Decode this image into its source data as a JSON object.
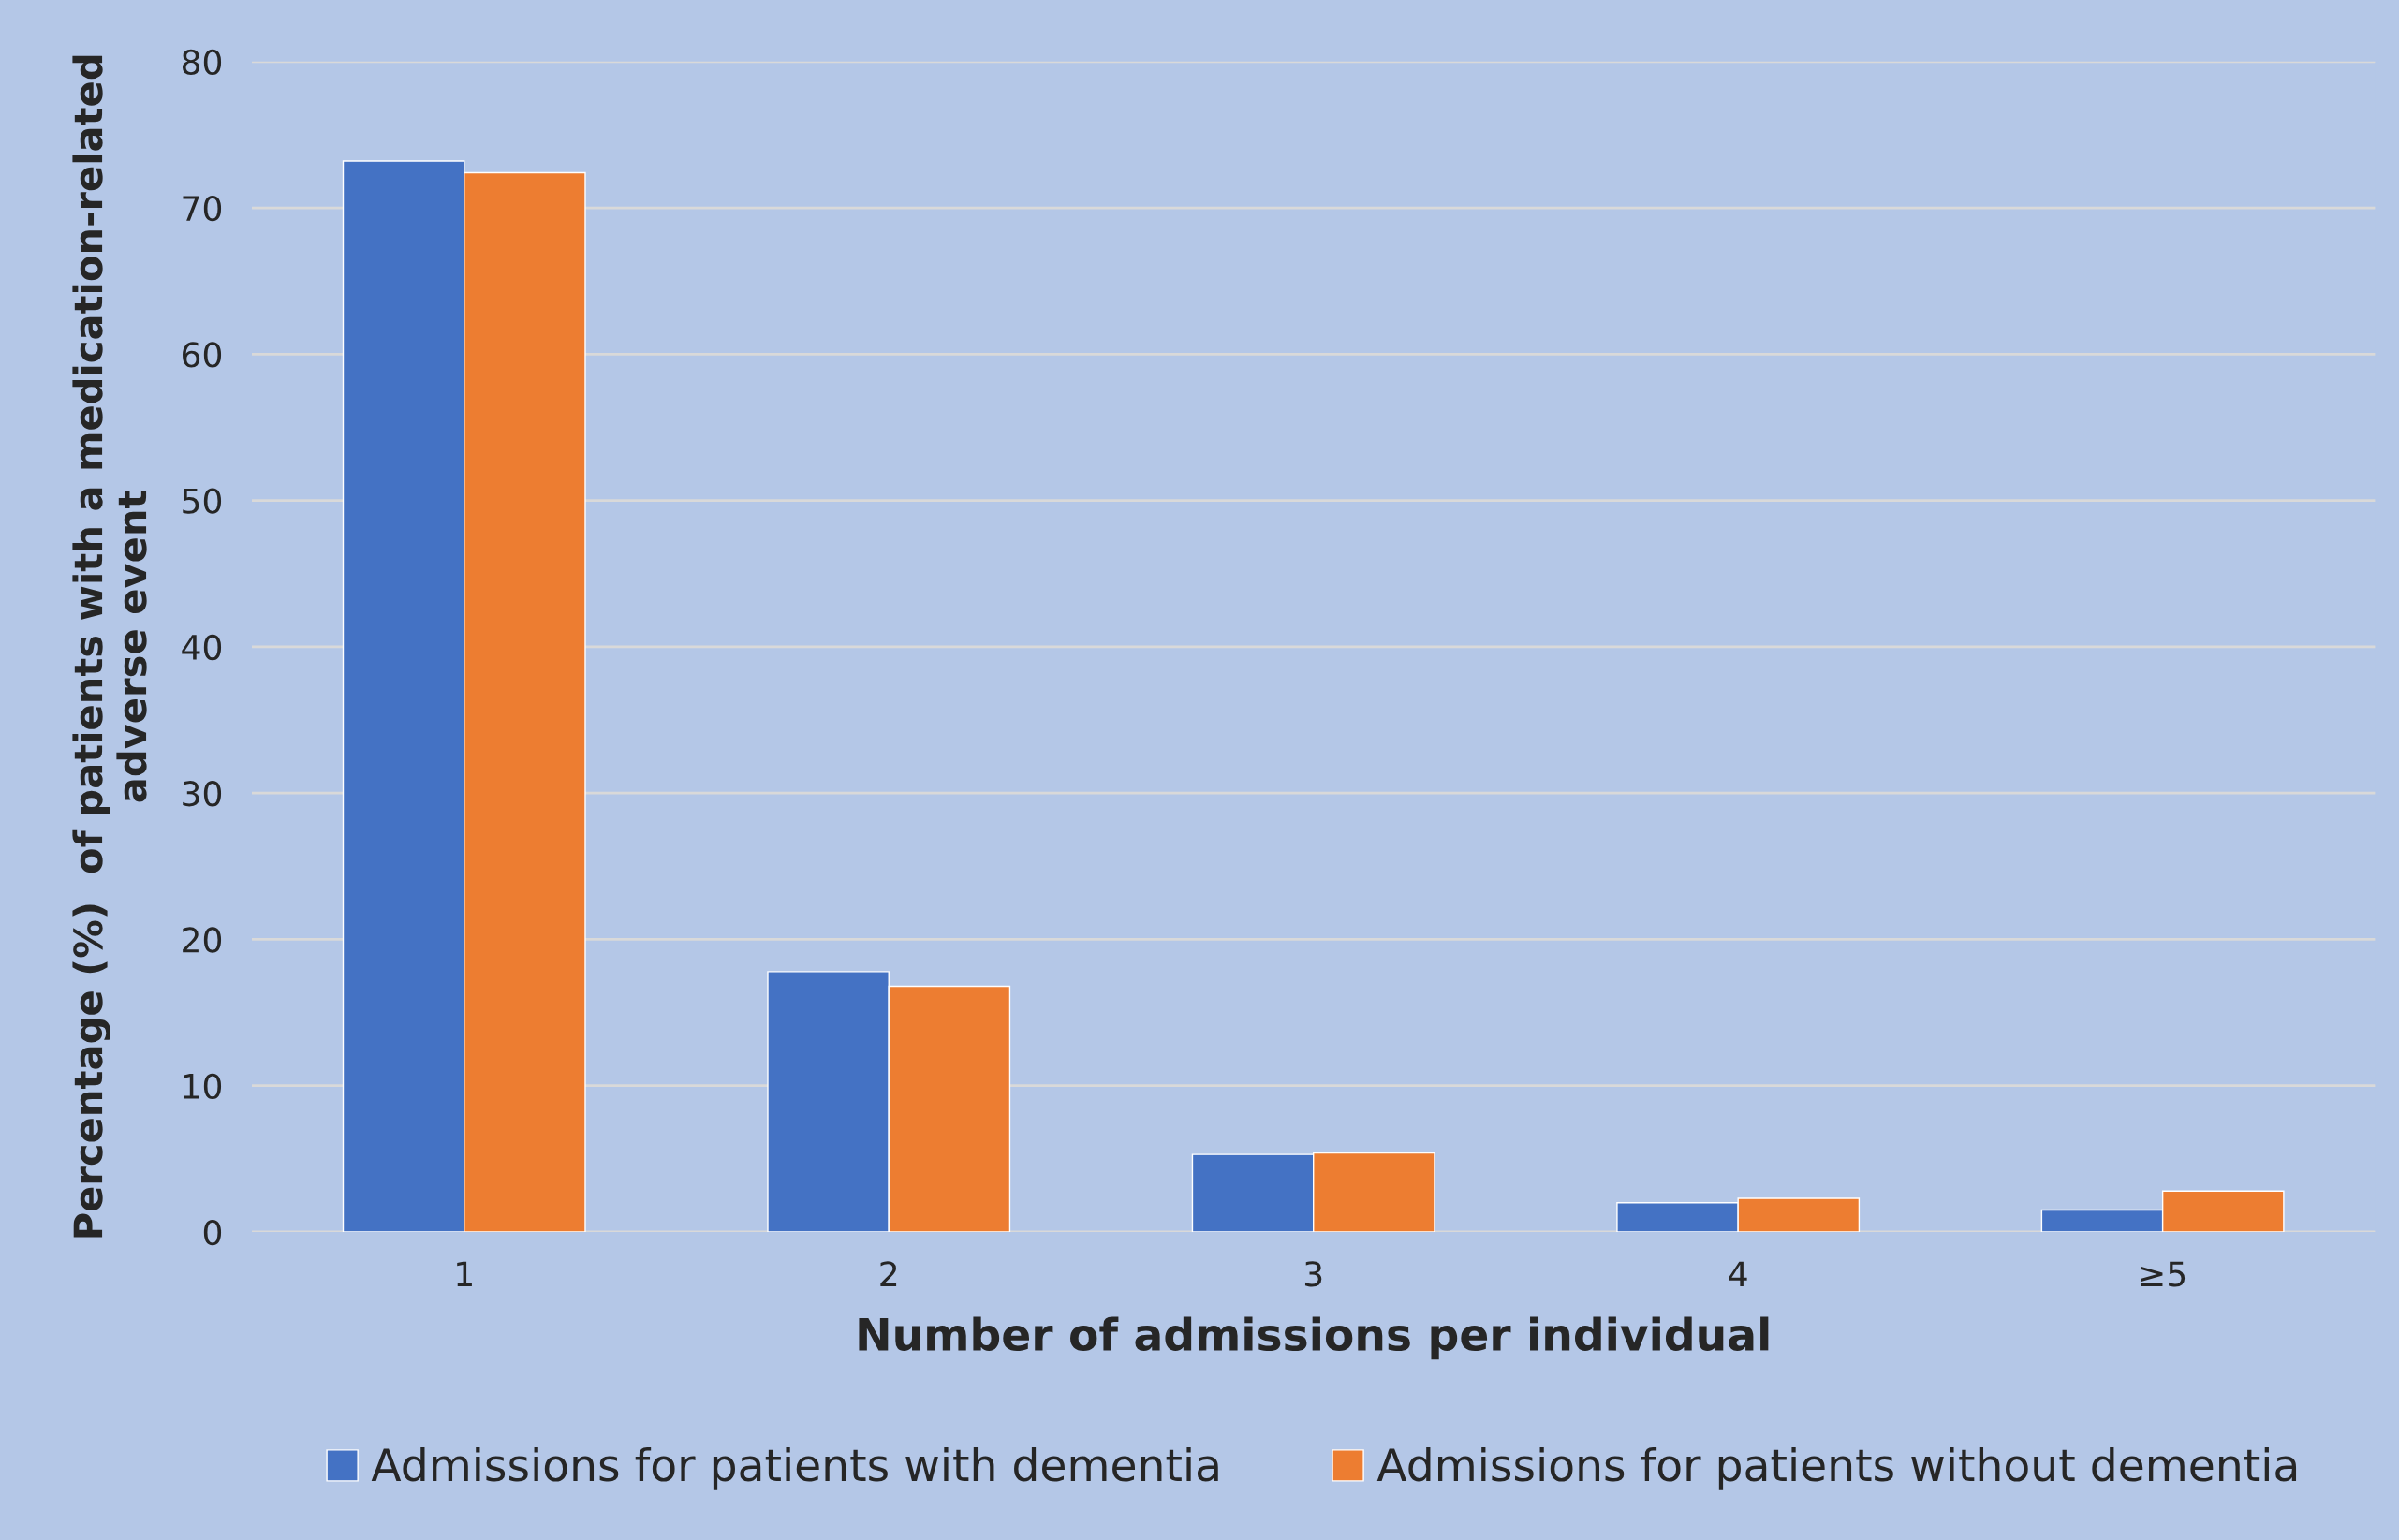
{
  "chart_data": {
    "type": "bar",
    "xlabel": "Number of admissions per individual",
    "ylabel": "Percentage (%)  of patients with a medication-related\nadverse event",
    "categories": [
      "1",
      "2",
      "3",
      "4",
      "≥5"
    ],
    "series": [
      {
        "name": "Admissions for patients with dementia",
        "color": "#4472c4",
        "values": [
          73.2,
          17.8,
          5.3,
          2.0,
          1.5
        ]
      },
      {
        "name": "Admissions for patients without dementia",
        "color": "#ed7d31",
        "values": [
          72.4,
          16.8,
          5.4,
          2.3,
          2.8
        ]
      }
    ],
    "ylim": [
      0,
      80
    ],
    "yticks": [
      0,
      10,
      20,
      30,
      40,
      50,
      60,
      70,
      80
    ],
    "grid": "y",
    "legend": "bottom"
  }
}
